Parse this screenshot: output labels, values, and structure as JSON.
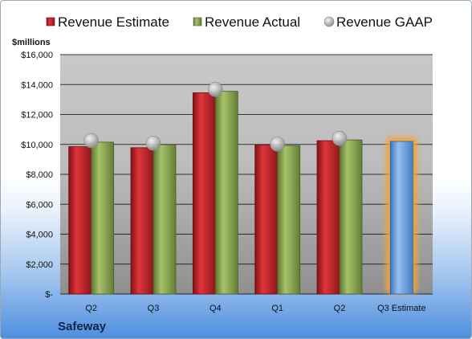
{
  "chart_data": {
    "type": "bar",
    "ylabel": "$millions",
    "ylim": [
      0,
      16000
    ],
    "y_ticks": [
      "$-",
      "$2,000",
      "$4,000",
      "$6,000",
      "$8,000",
      "$10,000",
      "$12,000",
      "$14,000",
      "$16,000"
    ],
    "y_tick_values": [
      0,
      2000,
      4000,
      6000,
      8000,
      10000,
      12000,
      14000,
      16000
    ],
    "categories": [
      "Q2",
      "Q3",
      "Q4",
      "Q1",
      "Q2",
      "Q3 Estimate"
    ],
    "series": [
      {
        "name": "Revenue Estimate",
        "type": "bar",
        "color": "#c0262c",
        "values": [
          9850,
          9780,
          13450,
          9950,
          10250,
          null
        ]
      },
      {
        "name": "Revenue Actual",
        "type": "bar",
        "color": "#8aa84e",
        "values": [
          10150,
          9980,
          13550,
          9920,
          10300,
          null
        ]
      },
      {
        "name": "Revenue GAAP",
        "type": "marker",
        "color": "#b5b5b5",
        "values": [
          10250,
          10080,
          13670,
          10020,
          10400,
          null
        ]
      },
      {
        "name": "Q3 Estimate",
        "type": "bar",
        "color": "#6ea0d8",
        "highlight": "#f2a33a",
        "values": [
          null,
          null,
          null,
          null,
          null,
          10200
        ]
      }
    ],
    "grid": true,
    "legend": "top",
    "company": "Safeway"
  }
}
